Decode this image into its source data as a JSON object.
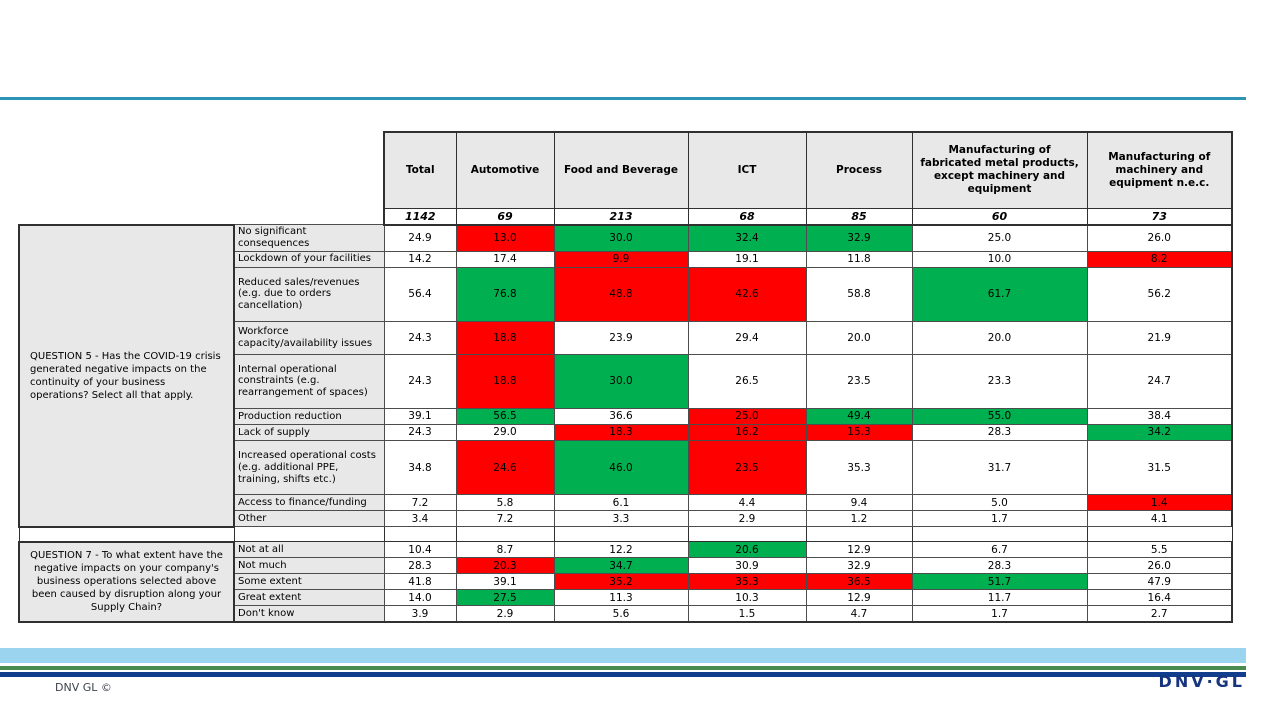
{
  "top_rule": {
    "color": "#2E93B5"
  },
  "chart_data": {
    "type": "table",
    "columns": [
      "Total",
      "Automotive",
      "Food and Beverage",
      "ICT",
      "Process",
      "Manufacturing of fabricated metal products, except machinery and equipment",
      "Manufacturing of machinery and equipment n.e.c."
    ],
    "sample_sizes": [
      "1142",
      "69",
      "213",
      "68",
      "85",
      "60",
      "73"
    ],
    "highlight_colors": {
      "w": "#FFFFFF",
      "r": "#FF0000",
      "g": "#00B050"
    },
    "sections": [
      {
        "question": "QUESTION 5 - Has the COVID-19 crisis generated negative impacts on the continuity of your business operations? Select all that apply.",
        "rows": [
          {
            "label": "No significant consequences",
            "values": [
              "24.9",
              "13.0",
              "30.0",
              "32.4",
              "32.9",
              "25.0",
              "26.0"
            ],
            "highlight": [
              "w",
              "r",
              "g",
              "g",
              "g",
              "w",
              "w"
            ]
          },
          {
            "label": "Lockdown of your facilities",
            "values": [
              "14.2",
              "17.4",
              "9.9",
              "19.1",
              "11.8",
              "10.0",
              "8.2"
            ],
            "highlight": [
              "w",
              "w",
              "r",
              "w",
              "w",
              "w",
              "r"
            ]
          },
          {
            "label": "Reduced sales/revenues (e.g. due to orders cancellation)",
            "values": [
              "56.4",
              "76.8",
              "48.8",
              "42.6",
              "58.8",
              "61.7",
              "56.2"
            ],
            "highlight": [
              "w",
              "g",
              "r",
              "r",
              "w",
              "g",
              "w"
            ]
          },
          {
            "label": "Workforce capacity/availability issues",
            "values": [
              "24.3",
              "18.8",
              "23.9",
              "29.4",
              "20.0",
              "20.0",
              "21.9"
            ],
            "highlight": [
              "w",
              "r",
              "w",
              "w",
              "w",
              "w",
              "w"
            ]
          },
          {
            "label": "Internal operational constraints (e.g. rearrangement of spaces)",
            "values": [
              "24.3",
              "18.8",
              "30.0",
              "26.5",
              "23.5",
              "23.3",
              "24.7"
            ],
            "highlight": [
              "w",
              "r",
              "g",
              "w",
              "w",
              "w",
              "w"
            ]
          },
          {
            "label": "Production reduction",
            "values": [
              "39.1",
              "56.5",
              "36.6",
              "25.0",
              "49.4",
              "55.0",
              "38.4"
            ],
            "highlight": [
              "w",
              "g",
              "w",
              "r",
              "g",
              "g",
              "w"
            ]
          },
          {
            "label": "Lack of supply",
            "values": [
              "24.3",
              "29.0",
              "18.3",
              "16.2",
              "15.3",
              "28.3",
              "34.2"
            ],
            "highlight": [
              "w",
              "w",
              "r",
              "r",
              "r",
              "w",
              "g"
            ]
          },
          {
            "label": "Increased operational costs (e.g. additional PPE, training, shifts etc.)",
            "values": [
              "34.8",
              "24.6",
              "46.0",
              "23.5",
              "35.3",
              "31.7",
              "31.5"
            ],
            "highlight": [
              "w",
              "r",
              "g",
              "r",
              "w",
              "w",
              "w"
            ]
          },
          {
            "label": "Access to finance/funding",
            "values": [
              "7.2",
              "5.8",
              "6.1",
              "4.4",
              "9.4",
              "5.0",
              "1.4"
            ],
            "highlight": [
              "w",
              "w",
              "w",
              "w",
              "w",
              "w",
              "r"
            ]
          },
          {
            "label": "Other",
            "values": [
              "3.4",
              "7.2",
              "3.3",
              "2.9",
              "1.2",
              "1.7",
              "4.1"
            ],
            "highlight": [
              "w",
              "w",
              "w",
              "w",
              "w",
              "w",
              "w"
            ]
          }
        ]
      },
      {
        "question": "QUESTION 7 - To what extent have the negative impacts on your company's business operations selected above been caused by disruption along your Supply Chain?",
        "rows": [
          {
            "label": "Not at all",
            "values": [
              "10.4",
              "8.7",
              "12.2",
              "20.6",
              "12.9",
              "6.7",
              "5.5"
            ],
            "highlight": [
              "w",
              "w",
              "w",
              "g",
              "w",
              "w",
              "w"
            ]
          },
          {
            "label": "Not much",
            "values": [
              "28.3",
              "20.3",
              "34.7",
              "30.9",
              "32.9",
              "28.3",
              "26.0"
            ],
            "highlight": [
              "w",
              "r",
              "g",
              "w",
              "w",
              "w",
              "w"
            ]
          },
          {
            "label": "Some extent",
            "values": [
              "41.8",
              "39.1",
              "35.2",
              "35.3",
              "36.5",
              "51.7",
              "47.9"
            ],
            "highlight": [
              "w",
              "w",
              "r",
              "r",
              "r",
              "g",
              "w"
            ]
          },
          {
            "label": "Great extent",
            "values": [
              "14.0",
              "27.5",
              "11.3",
              "10.3",
              "12.9",
              "11.7",
              "16.4"
            ],
            "highlight": [
              "w",
              "g",
              "w",
              "w",
              "w",
              "w",
              "w"
            ]
          },
          {
            "label": "Don't know",
            "values": [
              "3.9",
              "2.9",
              "5.6",
              "1.5",
              "4.7",
              "1.7",
              "2.7"
            ],
            "highlight": [
              "w",
              "w",
              "w",
              "w",
              "w",
              "w",
              "w"
            ]
          }
        ]
      }
    ]
  },
  "footer": {
    "copyright": "DNV GL ©",
    "logo_text": "DNV·GL",
    "band_colors": {
      "light_blue": "#9AD4EE",
      "green": "#4A8C4F",
      "navy": "#103E8C"
    }
  }
}
